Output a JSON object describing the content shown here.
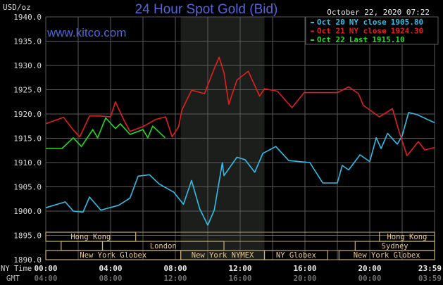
{
  "chart_data": {
    "type": "line",
    "title": "24 Hour Spot Gold (Bid)",
    "watermark": "www.kitco.com",
    "unit_label": "USD/oz",
    "timestamp": "October 22, 2020 07:22",
    "ylim": [
      1890,
      1940
    ],
    "yticks": [
      "1940.0",
      "1935.0",
      "1930.0",
      "1925.0",
      "1920.0",
      "1915.0",
      "1910.0",
      "1905.0",
      "1900.0",
      "1895.0",
      "1890.0"
    ],
    "ytick_values": [
      1940,
      1935,
      1930,
      1925,
      1920,
      1915,
      1910,
      1905,
      1900,
      1895,
      1890
    ],
    "xlim_hours": [
      0,
      24
    ],
    "x_row_labels": {
      "ny": "NY Time",
      "gmt": "GMT"
    },
    "xticks": [
      {
        "hour": 0,
        "ny": "00:00",
        "gmt": "04:00"
      },
      {
        "hour": 4,
        "ny": "04:00",
        "gmt": "08:00"
      },
      {
        "hour": 8,
        "ny": "08:00",
        "gmt": "12:00"
      },
      {
        "hour": 12,
        "ny": "12:00",
        "gmt": "16:00"
      },
      {
        "hour": 16,
        "ny": "16:00",
        "gmt": "20:00"
      },
      {
        "hour": 20,
        "ny": "20:00",
        "gmt": "00:00"
      },
      {
        "hour": 24,
        "ny": "23:59",
        "gmt": "03:59"
      }
    ],
    "grid": true,
    "highlight_hours": [
      8.33,
      13.5
    ],
    "legend_position": "top-right",
    "series": [
      {
        "name": "Oct 20 NY close 1905.80",
        "label_date": "Oct 20",
        "label_kind": "NY close",
        "label_value": "1905.80",
        "color": "#33bde6",
        "x": [
          0,
          1.2,
          1.7,
          2.3,
          2.7,
          3.4,
          4.5,
          5.2,
          5.7,
          6.4,
          7,
          7.9,
          8.5,
          9,
          9.5,
          10,
          10.4,
          10.9,
          11,
          11.8,
          12.3,
          12.9,
          13.4,
          14.2,
          15,
          16.3,
          17.1,
          18,
          18.3,
          18.7,
          19.4,
          20,
          20.4,
          20.7,
          21.1,
          21.7,
          22,
          22.4,
          22.9,
          24
        ],
        "y": [
          1900.7,
          1901.9,
          1900,
          1899.8,
          1902.9,
          1900.2,
          1901.2,
          1902.7,
          1907.2,
          1907.5,
          1905.6,
          1903.9,
          1901.4,
          1906.3,
          1900.5,
          1897.1,
          1900.2,
          1910,
          1907.3,
          1911.1,
          1910.6,
          1908,
          1911.9,
          1913.3,
          1910.4,
          1910,
          1905.8,
          1905.8,
          1909.4,
          1908.5,
          1911.6,
          1910.2,
          1915.1,
          1912.9,
          1916,
          1913.8,
          1915.5,
          1920.3,
          1919.9,
          1918.2
        ]
      },
      {
        "name": "Oct 21 NY close 1924.30",
        "label_date": "Oct 21",
        "label_kind": "NY close",
        "label_value": "1924.30",
        "color": "#e02020",
        "x": [
          0,
          1.1,
          1.7,
          2.1,
          2.7,
          3.3,
          4,
          4.3,
          4.8,
          5.2,
          6,
          6.8,
          7.4,
          7.8,
          8.2,
          8.4,
          9,
          9.8,
          10.3,
          10.7,
          11,
          11.3,
          11.8,
          12.5,
          13.2,
          13.5,
          14.3,
          15.2,
          15.95,
          18,
          18.7,
          19.3,
          19.6,
          20.6,
          21.4,
          21.8,
          22.3,
          23,
          23.4,
          24
        ],
        "y": [
          1918,
          1919.3,
          1916.7,
          1915.3,
          1919.6,
          1919.6,
          1919.4,
          1922.5,
          1918.9,
          1916.4,
          1917.4,
          1918.9,
          1919.4,
          1915.3,
          1917.4,
          1920.8,
          1924.9,
          1924.2,
          1928.5,
          1931.7,
          1928.5,
          1922,
          1927,
          1928.8,
          1923.7,
          1925.2,
          1924.7,
          1921.3,
          1924.4,
          1924.4,
          1925.6,
          1924.2,
          1921.8,
          1919.4,
          1921.1,
          1916.5,
          1911.4,
          1914.3,
          1912.6,
          1913.1
        ]
      },
      {
        "name": "Oct 22 Last 1915.10",
        "label_date": "Oct 22",
        "label_kind": "Last",
        "label_value": "1915.10",
        "color": "#22dd22",
        "x": [
          0,
          1,
          1.7,
          2.2,
          2.9,
          3.2,
          3.7,
          4.3,
          4.6,
          5.2,
          6,
          6.3,
          6.6,
          7.37
        ],
        "y": [
          1912.9,
          1912.9,
          1915.1,
          1913.3,
          1916.8,
          1915.1,
          1919.2,
          1917,
          1918,
          1915.8,
          1916.8,
          1915.1,
          1917.5,
          1915.1
        ]
      }
    ],
    "sessions": [
      {
        "label": "Hong Kong",
        "row": 0,
        "start": 0,
        "end": 5.55
      },
      {
        "label": "Hong Kong",
        "row": 0,
        "start": 20.6,
        "end": 24
      },
      {
        "label": "",
        "row": 1,
        "start": 0.95,
        "end": 3.5
      },
      {
        "label": "London",
        "row": 1,
        "start": 3.5,
        "end": 11
      },
      {
        "label": "Sydney",
        "row": 1,
        "start": 19.1,
        "end": 24
      },
      {
        "label": "New York Globex",
        "row": 2,
        "start": 0,
        "end": 8.33
      },
      {
        "label": "New York NYMEX",
        "row": 2,
        "start": 8.33,
        "end": 13.5
      },
      {
        "label": "NY Globex",
        "row": 2,
        "start": 13.5,
        "end": 17.4
      },
      {
        "label": "New York Globex",
        "row": 2,
        "start": 18.1,
        "end": 24
      }
    ]
  }
}
